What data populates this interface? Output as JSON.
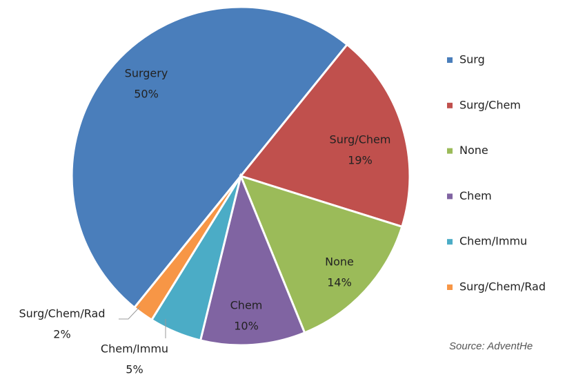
{
  "chart_data": {
    "type": "pie",
    "categories": [
      "Surg",
      "Surg/Chem",
      "None",
      "Chem",
      "Chem/Immu",
      "Surg/Chem/Rad"
    ],
    "data_label_names": [
      "Surgery",
      "Surg/Chem",
      "None",
      "Chem",
      "Chem/Immu",
      "Surg/Chem/Rad"
    ],
    "values": [
      50,
      19,
      14,
      10,
      5,
      2
    ],
    "value_labels": [
      "50%",
      "19%",
      "14%",
      "10%",
      "5%",
      "2%"
    ],
    "colors": [
      "#4a7ebb",
      "#c0504d",
      "#9bbb59",
      "#8064a2",
      "#4bacc6",
      "#f79646"
    ],
    "start_angle": 219,
    "legend": "right",
    "source": "Source: AdventHe"
  }
}
